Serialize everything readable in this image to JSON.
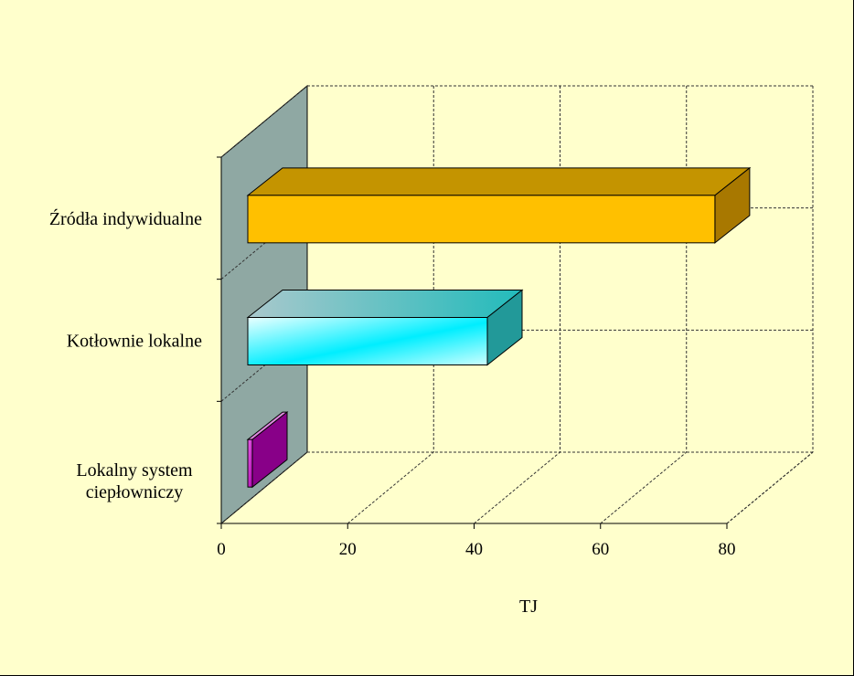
{
  "chart_data": {
    "type": "bar",
    "orientation": "horizontal",
    "style": "3d",
    "categories": [
      "Lokalny system ciepłowniczy",
      "Kotłownie lokalne",
      "Źródła indywidualne"
    ],
    "category_label_lines": [
      [
        "Lokalny system",
        "ciepłowniczy"
      ],
      [
        "Kotłownie lokalne"
      ],
      [
        "Źródła indywidualne"
      ]
    ],
    "values": [
      0.5,
      40,
      78
    ],
    "xlabel": "TJ",
    "ylabel": "",
    "xlim": [
      0,
      80
    ],
    "ticks": [
      "0",
      "20",
      "40",
      "60",
      "80"
    ],
    "grid": true,
    "legend": "none",
    "colors": {
      "background": "#ffffcc",
      "back_wall": "#8fa8a3",
      "bars": [
        {
          "front": "#ee66ee",
          "front_dark": "#aa00aa",
          "top": "#dd88dd",
          "side": "#880088"
        },
        {
          "front": "#00eeff",
          "front_dark": "#eaffff",
          "top": "#44cccc",
          "side": "#229999"
        },
        {
          "front": "#ffc000",
          "front_dark": "#ffc000",
          "top": "#c49400",
          "side": "#a87800"
        }
      ]
    }
  }
}
